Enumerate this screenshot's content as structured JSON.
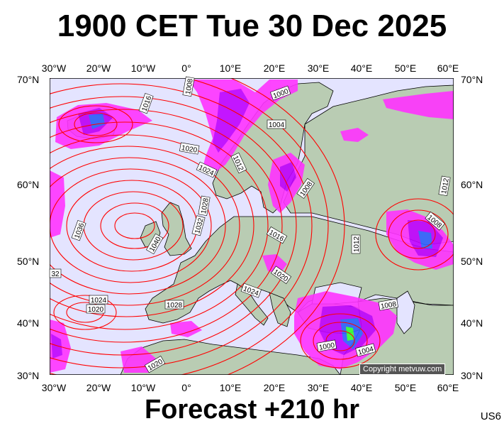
{
  "title": "1900 CET Tue 30 Dec 2025",
  "footer": "Forecast +210 hr",
  "region_code": "US6",
  "copyright": "Copyright metvuw.com",
  "axes": {
    "lon_labels": [
      "30°W",
      "20°W",
      "10°W",
      "0°",
      "10°E",
      "20°E",
      "30°E",
      "40°E",
      "50°E",
      "60°E"
    ],
    "lat_labels": [
      "70°N",
      "60°N",
      "50°N",
      "40°N",
      "30°N"
    ]
  },
  "isobar_labels": [
    {
      "text": "1016"
    },
    {
      "text": "1008"
    },
    {
      "text": "1000"
    },
    {
      "text": "1004"
    },
    {
      "text": "1020"
    },
    {
      "text": "1024"
    },
    {
      "text": "1012"
    },
    {
      "text": "1036"
    },
    {
      "text": "1028"
    },
    {
      "text": "1032"
    },
    {
      "text": "1040"
    },
    {
      "text": "1008"
    },
    {
      "text": "1016"
    },
    {
      "text": "1012"
    },
    {
      "text": "1012"
    },
    {
      "text": "1008"
    },
    {
      "text": "1020"
    },
    {
      "text": "1024"
    },
    {
      "text": "1028"
    },
    {
      "text": "1024"
    },
    {
      "text": "1020"
    },
    {
      "text": "1008"
    },
    {
      "text": "1000"
    },
    {
      "text": "1004"
    },
    {
      "text": "1020"
    },
    {
      "text": "32"
    }
  ],
  "colors": {
    "sea": "#e4e4ff",
    "land": "#b9ccb3",
    "isobar": "#ff0000",
    "precip_light": "#ff33ff",
    "precip_mid": "#c000ff",
    "precip_heavy": "#3060ff"
  }
}
